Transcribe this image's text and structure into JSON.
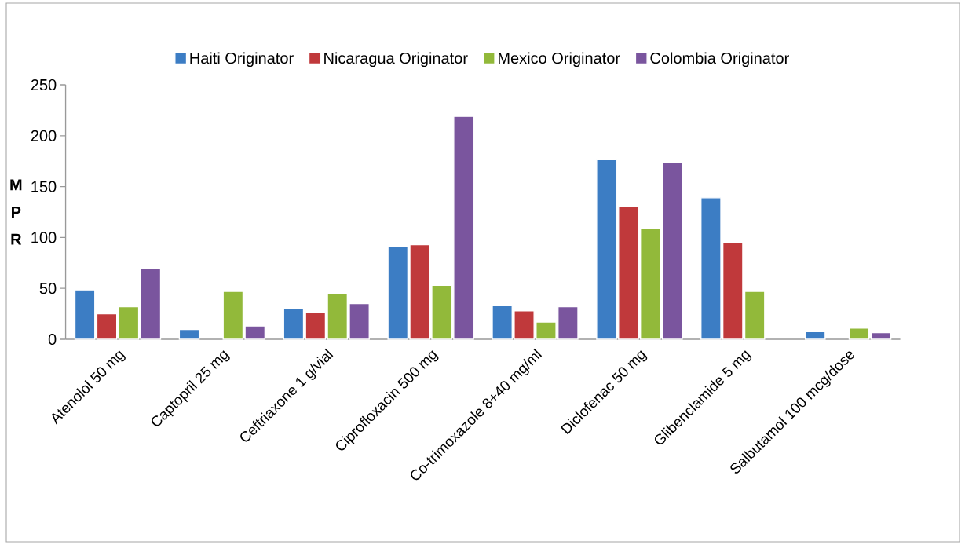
{
  "chart_data": {
    "type": "bar",
    "ylabel": "M P R",
    "legend": "top",
    "ylim": [
      0,
      250
    ],
    "yticks": [
      0,
      50,
      100,
      150,
      200,
      250
    ],
    "categories": [
      "Atenolol 50 mg",
      "Captopril 25 mg",
      "Ceftriaxone 1 g/vial",
      "Ciprofloxacin 500 mg",
      "Co-trimoxazole 8+40 mg/ml",
      "Diclofenac 50 mg",
      "Glibenclamide 5 mg",
      "Salbutamol 100 mcg/dose"
    ],
    "series": [
      {
        "name": "Haiti Originator",
        "color": "#3c7dc4",
        "values": [
          48.5,
          9.5,
          30,
          91,
          33,
          176.5,
          139,
          7.5
        ]
      },
      {
        "name": "Nicaragua Originator",
        "color": "#c0393b",
        "values": [
          25,
          null,
          26.5,
          93,
          28,
          131,
          95,
          null
        ]
      },
      {
        "name": "Mexico Originator",
        "color": "#92b93a",
        "values": [
          32,
          47,
          45,
          53,
          17,
          109,
          47,
          11
        ]
      },
      {
        "name": "Colombia Originator",
        "color": "#7a559e",
        "values": [
          70,
          13,
          35,
          219,
          32,
          174,
          null,
          6.5
        ]
      }
    ]
  }
}
